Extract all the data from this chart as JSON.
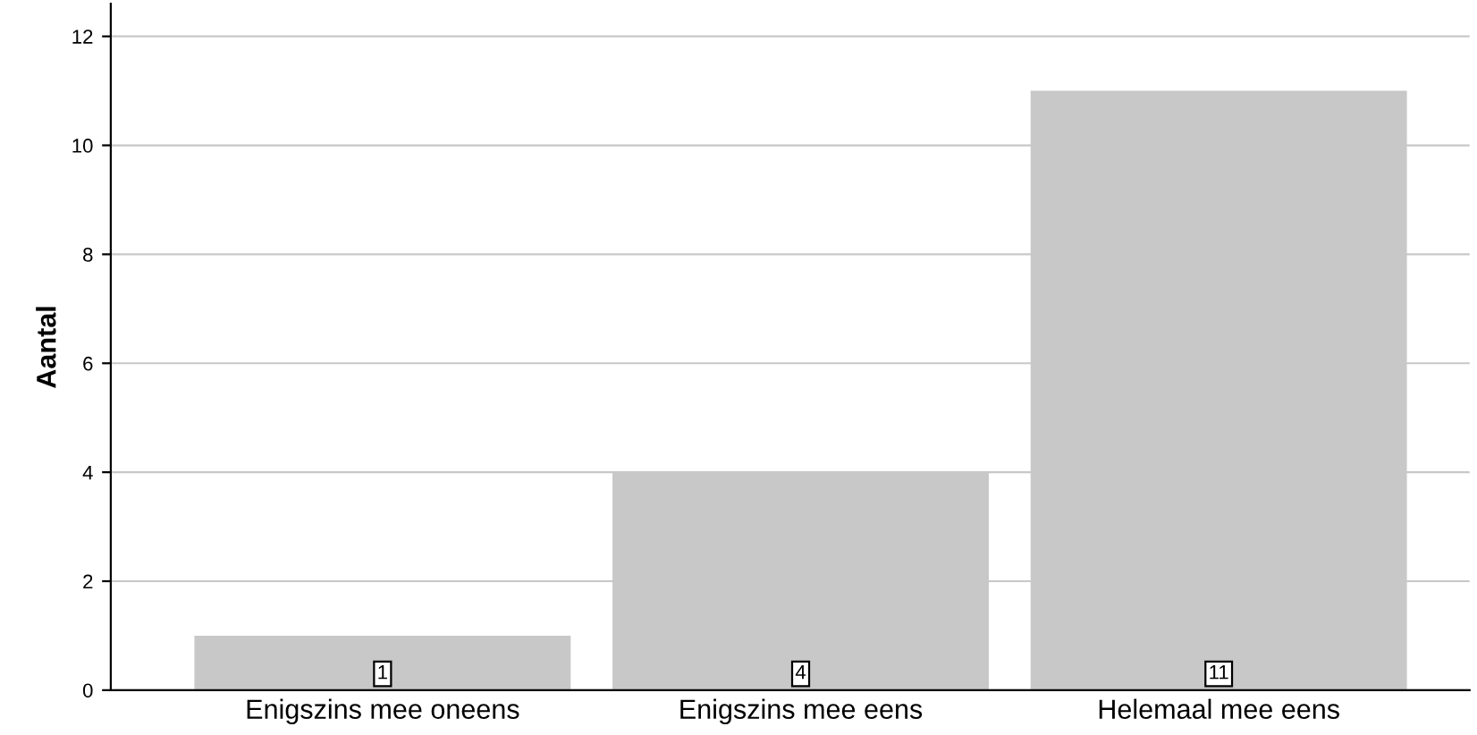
{
  "chart_data": {
    "type": "bar",
    "ylabel": "Aantal",
    "categories": [
      "Enigszins mee oneens",
      "Enigszins mee eens",
      "Helemaal mee eens"
    ],
    "values": [
      1,
      4,
      11
    ],
    "color": "#c8c8c8",
    "ylim": [
      0,
      12.6
    ],
    "yticks": [
      0,
      2,
      4,
      6,
      8,
      10,
      12
    ],
    "grid": "y",
    "data_labels": true
  }
}
